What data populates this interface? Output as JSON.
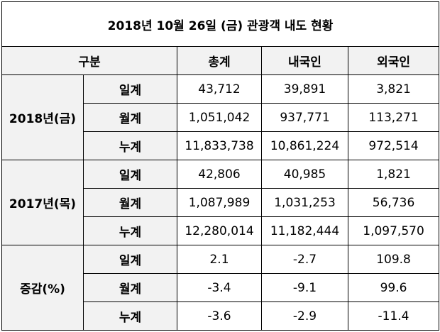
{
  "title": "2018년 10월 26일 (금) 관광객 내도 현황",
  "header": {
    "category": "구분",
    "columns": [
      "총계",
      "내국인",
      "외국인"
    ]
  },
  "groups": [
    {
      "label": "2018년(금)",
      "rows": [
        {
          "label": "일계",
          "values": [
            "43,712",
            "39,891",
            "3,821"
          ]
        },
        {
          "label": "월계",
          "values": [
            "1,051,042",
            "937,771",
            "113,271"
          ]
        },
        {
          "label": "누계",
          "values": [
            "11,833,738",
            "10,861,224",
            "972,514"
          ]
        }
      ]
    },
    {
      "label": "2017년(목)",
      "rows": [
        {
          "label": "일계",
          "values": [
            "42,806",
            "40,985",
            "1,821"
          ]
        },
        {
          "label": "월계",
          "values": [
            "1,087,989",
            "1,031,253",
            "56,736"
          ]
        },
        {
          "label": "누계",
          "values": [
            "12,280,014",
            "11,182,444",
            "1,097,570"
          ]
        }
      ]
    },
    {
      "label": "증감(%)",
      "rows": [
        {
          "label": "일계",
          "values": [
            "2.1",
            "-2.7",
            "109.8"
          ]
        },
        {
          "label": "월계",
          "values": [
            "-3.4",
            "-9.1",
            "99.6"
          ]
        },
        {
          "label": "누계",
          "values": [
            "-3.6",
            "-2.9",
            "-11.4"
          ]
        }
      ]
    }
  ]
}
